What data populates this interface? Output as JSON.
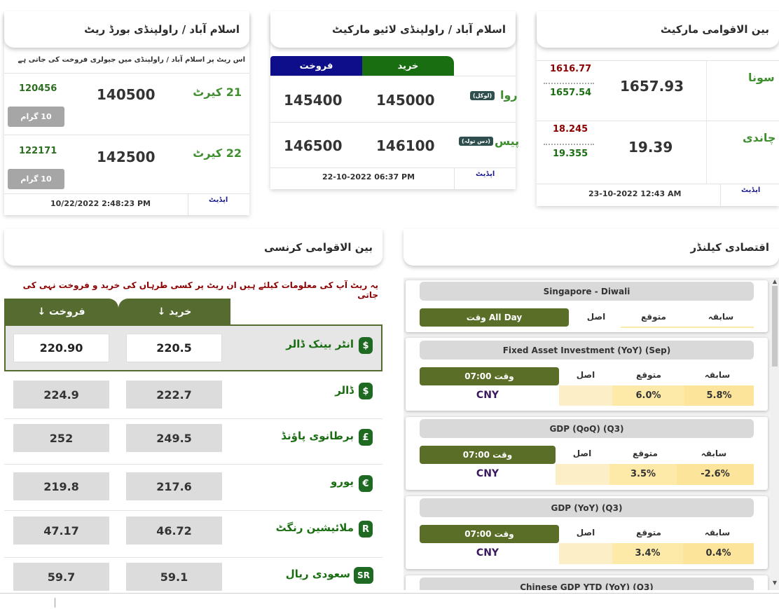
{
  "board": {
    "title": "اسلام آباد / راولپنڈی بورڈ ریٹ",
    "note": "اس ریٹ پر اسلام آباد / راولپنڈی میں جیولری فروخت کی جاتی ہے",
    "rows": [
      {
        "karat": "21 کیرٹ",
        "price": "140500",
        "low": "120456",
        "unit": "10 گرام"
      },
      {
        "karat": "22 کیرٹ",
        "price": "142500",
        "low": "122171",
        "unit": "10 گرام"
      }
    ],
    "updated": "10/22/2022 2:48:23 PM",
    "update_label": "اپڈیٹ"
  },
  "live": {
    "title": "اسلام آباد / راولپنڈی لائیو مارکیٹ",
    "sell_label": "فروخت",
    "buy_label": "خرید",
    "rows": [
      {
        "name": "روا",
        "tag": "(لوکل)",
        "sell": "145400",
        "buy": "145000"
      },
      {
        "name": "پیس",
        "tag": "(دس تولہ)",
        "sell": "146500",
        "buy": "146100"
      }
    ],
    "updated": "22-10-2022 06:37 PM",
    "update_label": "اپڈیٹ"
  },
  "intl": {
    "title": "بین الاقوامی مارکیٹ",
    "rows": [
      {
        "name": "سونا",
        "price": "1657.93",
        "high": "1616.77",
        "low": "1657.54"
      },
      {
        "name": "چاندی",
        "price": "19.39",
        "high": "18.245",
        "low": "19.355"
      }
    ],
    "updated": "23-10-2022 12:43 AM",
    "update_label": "اپڈیٹ"
  },
  "currency": {
    "title": "بین الاقوامی کرنسی",
    "note": "یہ ریٹ آپ کی معلومات کیلئے ہیں ان ریٹ پر کسی طرہاں کی خرید و فروخت نہی کی جاتی",
    "sell_label": "فروخت ↓",
    "buy_label": "خرید ↓",
    "rows": [
      {
        "name": "انٹر بینک ڈالر",
        "icon": "$",
        "sell": "220.90",
        "buy": "220.5"
      },
      {
        "name": "ڈالر",
        "icon": "$",
        "sell": "224.9",
        "buy": "222.7"
      },
      {
        "name": "برطانوی پاؤنڈ",
        "icon": "£",
        "sell": "252",
        "buy": "249.5"
      },
      {
        "name": "یورو",
        "icon": "€",
        "sell": "219.8",
        "buy": "217.6"
      },
      {
        "name": "ملائیشین رنگٹ",
        "icon": "R",
        "sell": "47.17",
        "buy": "46.72"
      },
      {
        "name": "سعودی ریال",
        "icon": "SR",
        "sell": "59.7",
        "buy": "59.1"
      }
    ]
  },
  "calendar": {
    "title": "اقتصادی کیلنڈر",
    "col_prev": "سابقہ",
    "col_exp": "متوقع",
    "col_act": "اصل",
    "events": [
      {
        "name": "Singapore - Diwali",
        "time": "All Day وقت",
        "country": "",
        "exp": "",
        "prev": ""
      },
      {
        "name": "Fixed Asset Investment (YoY) (Sep)",
        "time": "وقت 07:00",
        "country": "CNY",
        "exp": "6.0%",
        "prev": "5.8%"
      },
      {
        "name": "GDP (QoQ) (Q3)",
        "time": "وقت 07:00",
        "country": "CNY",
        "exp": "3.5%",
        "prev": "-2.6%"
      },
      {
        "name": "GDP (YoY) (Q3)",
        "time": "وقت 07:00",
        "country": "CNY",
        "exp": "3.4%",
        "prev": "0.4%"
      },
      {
        "name": "Chinese GDP YTD (YoY) (Q3)"
      }
    ]
  }
}
